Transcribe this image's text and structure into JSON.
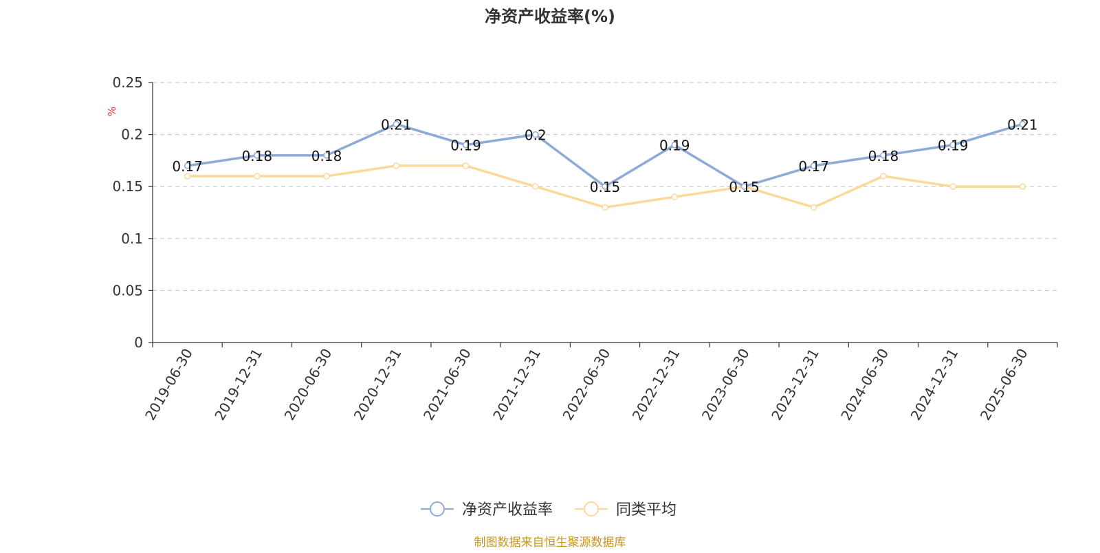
{
  "chart_data": {
    "type": "line",
    "title": "净资产收益率(%)",
    "ylabel": "%",
    "xlabel": "",
    "ylim": [
      0,
      0.25
    ],
    "yticks": [
      0,
      0.05,
      0.1,
      0.15,
      0.2,
      0.25
    ],
    "ytick_labels": [
      "0",
      "0.05",
      "0.1",
      "0.15",
      "0.2",
      "0.25"
    ],
    "grid": true,
    "legend_position": "bottom-center",
    "categories": [
      "2019-06-30",
      "2019-12-31",
      "2020-06-30",
      "2020-12-31",
      "2021-06-30",
      "2021-12-31",
      "2022-06-30",
      "2022-12-31",
      "2023-06-30",
      "2023-12-31",
      "2024-06-30",
      "2024-12-31",
      "2025-06-30"
    ],
    "series": [
      {
        "name": "净资产收益率",
        "color": "#8eaad6",
        "values": [
          0.17,
          0.18,
          0.18,
          0.21,
          0.19,
          0.2,
          0.15,
          0.19,
          0.15,
          0.17,
          0.18,
          0.19,
          0.21
        ],
        "data_labels": [
          "0.17",
          "0.18",
          "0.18",
          "0.21",
          "0.19",
          "0.2",
          "0.15",
          "0.19",
          "0.15",
          "0.17",
          "0.18",
          "0.19",
          "0.21"
        ]
      },
      {
        "name": "同类平均",
        "color": "#fbd99a",
        "values": [
          0.16,
          0.16,
          0.16,
          0.17,
          0.17,
          0.15,
          0.13,
          0.14,
          0.15,
          0.13,
          0.16,
          0.15,
          0.15
        ]
      }
    ],
    "source_note": "制图数据来自恒生聚源数据库",
    "source_color": "#c8961e",
    "ylabel_color": "#e0302f"
  }
}
